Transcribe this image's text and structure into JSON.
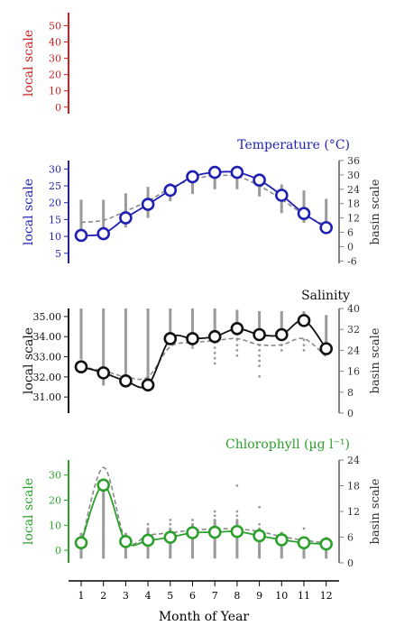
{
  "chart_data": {
    "x_axis": {
      "label": "Month of Year",
      "ticks": [
        1,
        2,
        3,
        4,
        5,
        6,
        7,
        8,
        9,
        10,
        11,
        12
      ]
    },
    "panels": [
      {
        "id": "empty",
        "type": "axis",
        "color": "#cc1f1f",
        "left_label": "local scale",
        "left_ticks": [
          0,
          10,
          20,
          30,
          40,
          50
        ],
        "left_lim": [
          -4,
          58
        ]
      },
      {
        "id": "temperature",
        "type": "line",
        "title": "Temperature (°C)",
        "color": "#1f1fb4",
        "left_label": "local scale",
        "left_ticks": [
          5,
          10,
          15,
          20,
          25,
          30
        ],
        "left_lim": [
          2,
          32.5
        ],
        "right_label": "basin scale",
        "right_ticks": [
          -6,
          0,
          6,
          12,
          18,
          24,
          30,
          36
        ],
        "right_lim": [
          -7,
          36
        ],
        "x": [
          1,
          2,
          3,
          4,
          5,
          6,
          7,
          8,
          9,
          10,
          11,
          12
        ],
        "local": [
          10.3,
          10.8,
          15.5,
          19.5,
          23.7,
          27.7,
          29.0,
          29.0,
          26.7,
          22.2,
          16.8,
          12.6
        ],
        "basin": [
          14.2,
          14.8,
          17.5,
          20.5,
          24.3,
          26.9,
          28.0,
          27.8,
          25.0,
          21.0,
          16.5,
          13.2
        ],
        "range_low": [
          6.5,
          6.5,
          8,
          12,
          19,
          22,
          24,
          24,
          21,
          14,
          10,
          7
        ],
        "range_high": [
          19.6,
          19.6,
          22.3,
          25.0,
          26.5,
          29.0,
          30.5,
          30.3,
          29.0,
          26.0,
          23.5,
          20.0
        ]
      },
      {
        "id": "salinity",
        "type": "line",
        "title": "Salinity",
        "color": "#111111",
        "left_label": "local scale",
        "left_ticks": [
          31.0,
          32.0,
          33.0,
          34.0,
          35.0
        ],
        "left_tick_labels": [
          "31.00",
          "32.00",
          "33.00",
          "34.00",
          "35.00"
        ],
        "left_lim": [
          30.2,
          35.4
        ],
        "right_label": "basin scale",
        "right_ticks": [
          0,
          8,
          16,
          24,
          32,
          40
        ],
        "right_lim": [
          0,
          40
        ],
        "x": [
          1,
          2,
          3,
          4,
          5,
          6,
          7,
          8,
          9,
          10,
          11,
          12
        ],
        "local": [
          32.5,
          32.2,
          31.8,
          31.6,
          33.9,
          33.9,
          34.0,
          34.4,
          34.1,
          34.1,
          34.8,
          33.4
        ],
        "basin": [
          32.5,
          32.3,
          32.0,
          32.0,
          33.5,
          33.7,
          33.8,
          33.9,
          33.6,
          33.6,
          33.9,
          33.0
        ],
        "range_low": [
          20.5,
          10.5,
          10.5,
          10.5,
          28.5,
          29.0,
          29.5,
          30.0,
          28.5,
          31.5,
          33.5,
          23.5
        ],
        "range_high": [
          40,
          40,
          40,
          40,
          40,
          40,
          40,
          39.5,
          39.0,
          39.0,
          39.0,
          37.5
        ],
        "dots": [
          {
            "x": 5,
            "values": [
              27,
              28,
              29,
              30,
              31
            ]
          },
          {
            "x": 6,
            "values": [
              25,
              26,
              27,
              29
            ]
          },
          {
            "x": 7,
            "values": [
              19,
              21,
              23,
              25,
              27,
              29
            ]
          },
          {
            "x": 8,
            "values": [
              22,
              24,
              26,
              28,
              30
            ]
          },
          {
            "x": 9,
            "values": [
              14,
              18,
              20,
              22,
              24,
              26
            ]
          },
          {
            "x": 10,
            "values": [
              24,
              26,
              28,
              30
            ]
          },
          {
            "x": 11,
            "values": [
              24,
              26,
              28
            ]
          }
        ]
      },
      {
        "id": "chlorophyll",
        "type": "line",
        "title": "Chlorophyll (µg l⁻¹)",
        "color": "#2ca02c",
        "left_label": "local scale",
        "left_ticks": [
          0,
          10,
          20,
          30
        ],
        "left_lim": [
          -5,
          36
        ],
        "right_label": "basin scale",
        "right_ticks": [
          0,
          6,
          12,
          18,
          24
        ],
        "right_lim": [
          0,
          24
        ],
        "x": [
          1,
          2,
          3,
          4,
          5,
          6,
          7,
          8,
          9,
          10,
          11,
          12
        ],
        "local": [
          3.0,
          26.0,
          3.5,
          4.0,
          5.2,
          7.0,
          7.2,
          7.5,
          5.8,
          4.2,
          3.0,
          2.5
        ],
        "basin": [
          2.5,
          33,
          4,
          6,
          7,
          8,
          8.5,
          8.5,
          7.5,
          5.5,
          4,
          3
        ],
        "range_low": [
          1,
          1,
          1,
          1,
          1,
          1,
          1,
          1,
          1,
          1,
          1,
          1
        ],
        "range_high": [
          7,
          18,
          7,
          8,
          8,
          9,
          10,
          10,
          8,
          7,
          6,
          6
        ],
        "dots": [
          {
            "x": 4,
            "values": [
              2,
              3,
              4,
              5,
              6,
              7,
              8,
              9
            ]
          },
          {
            "x": 5,
            "values": [
              2,
              3,
              4,
              5,
              6,
              7,
              8,
              9,
              10
            ]
          },
          {
            "x": 6,
            "values": [
              2,
              3,
              4,
              5,
              6,
              7,
              8,
              9,
              10
            ]
          },
          {
            "x": 7,
            "values": [
              2,
              3,
              4,
              5,
              6,
              7,
              8,
              9,
              10,
              11,
              12
            ]
          },
          {
            "x": 8,
            "values": [
              2,
              3,
              4,
              5,
              6,
              7,
              8,
              9,
              10,
              11,
              12,
              18
            ]
          },
          {
            "x": 9,
            "values": [
              2,
              3,
              4,
              5,
              6,
              7,
              8,
              9,
              13
            ]
          },
          {
            "x": 10,
            "values": [
              2,
              3,
              4,
              5,
              6,
              7
            ]
          },
          {
            "x": 11,
            "values": [
              2,
              3,
              4,
              8
            ]
          },
          {
            "x": 12,
            "values": [
              2,
              3
            ]
          }
        ]
      }
    ]
  }
}
